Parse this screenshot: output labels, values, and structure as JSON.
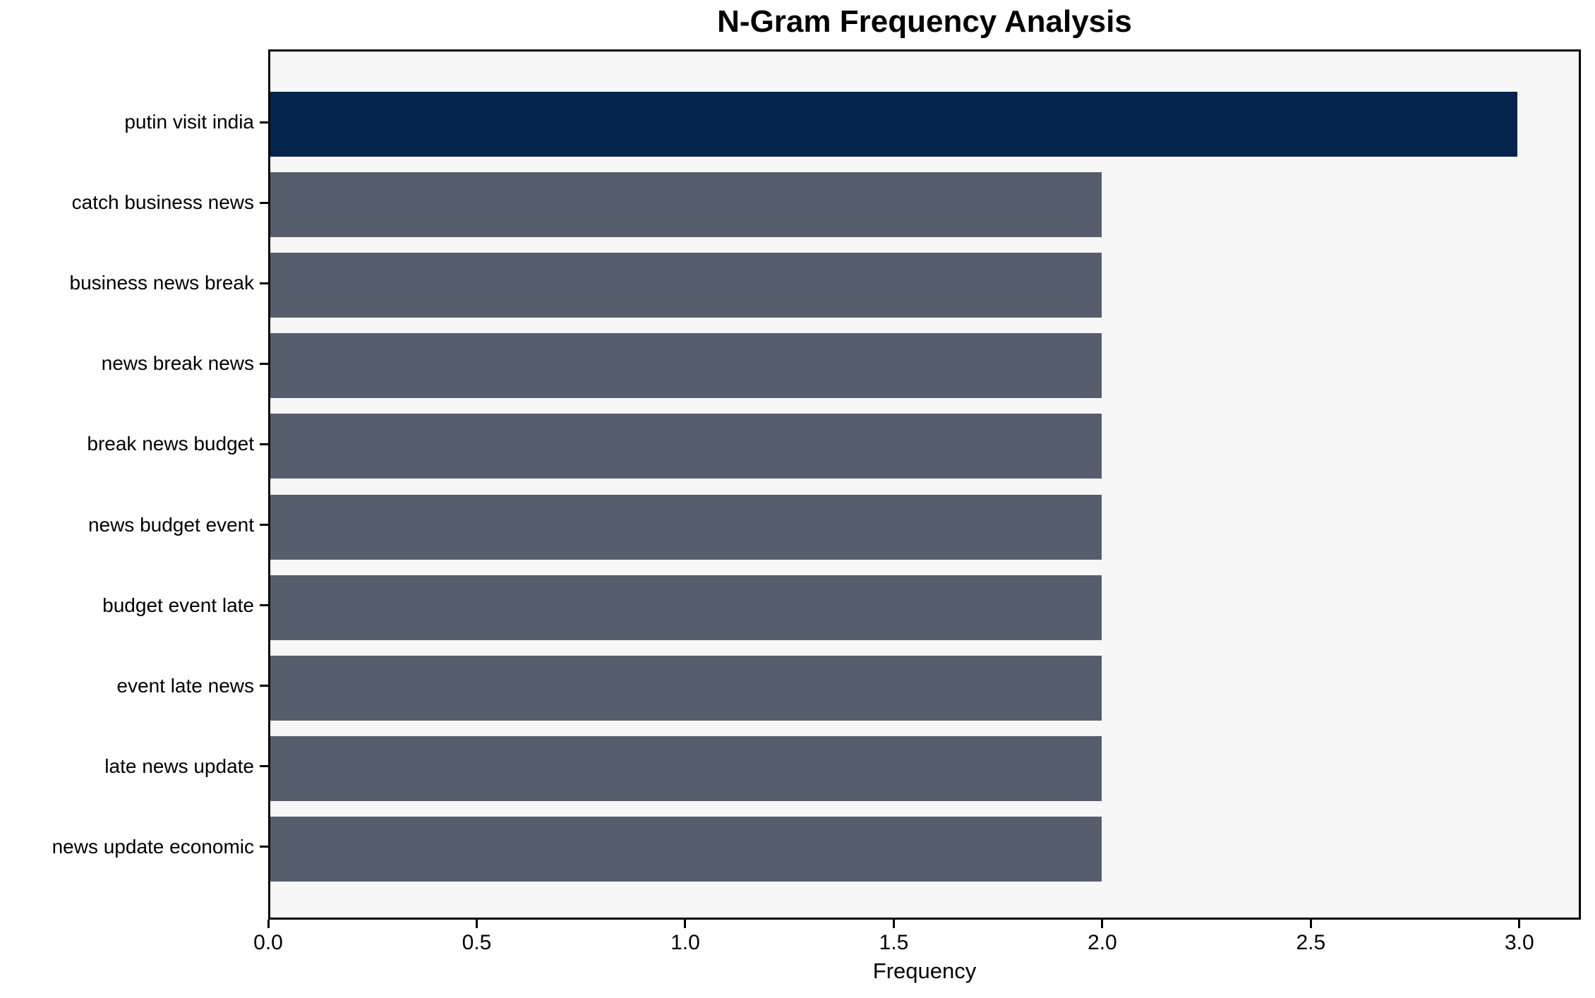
{
  "chart_data": {
    "type": "bar",
    "orientation": "horizontal",
    "title": "N-Gram Frequency Analysis",
    "xlabel": "Frequency",
    "ylabel": "",
    "categories": [
      "putin visit india",
      "catch business news",
      "business news break",
      "news break news",
      "break news budget",
      "news budget event",
      "budget event late",
      "event late news",
      "late news update",
      "news update economic"
    ],
    "values": [
      3,
      2,
      2,
      2,
      2,
      2,
      2,
      2,
      2,
      2
    ],
    "bar_colors": [
      "#03234d",
      "#565d6d",
      "#565d6d",
      "#565d6d",
      "#565d6d",
      "#565d6d",
      "#565d6d",
      "#565d6d",
      "#565d6d",
      "#565d6d"
    ],
    "xticks": [
      "0.0",
      "0.5",
      "1.0",
      "1.5",
      "2.0",
      "2.5",
      "3.0"
    ],
    "xtick_values": [
      0.0,
      0.5,
      1.0,
      1.5,
      2.0,
      2.5,
      3.0
    ],
    "xlim": [
      0,
      3.1475
    ],
    "grid": false,
    "legend": false,
    "plot_background": "#f7f7f8",
    "figure_background": "#ffffff",
    "spine_color": "#000000"
  }
}
